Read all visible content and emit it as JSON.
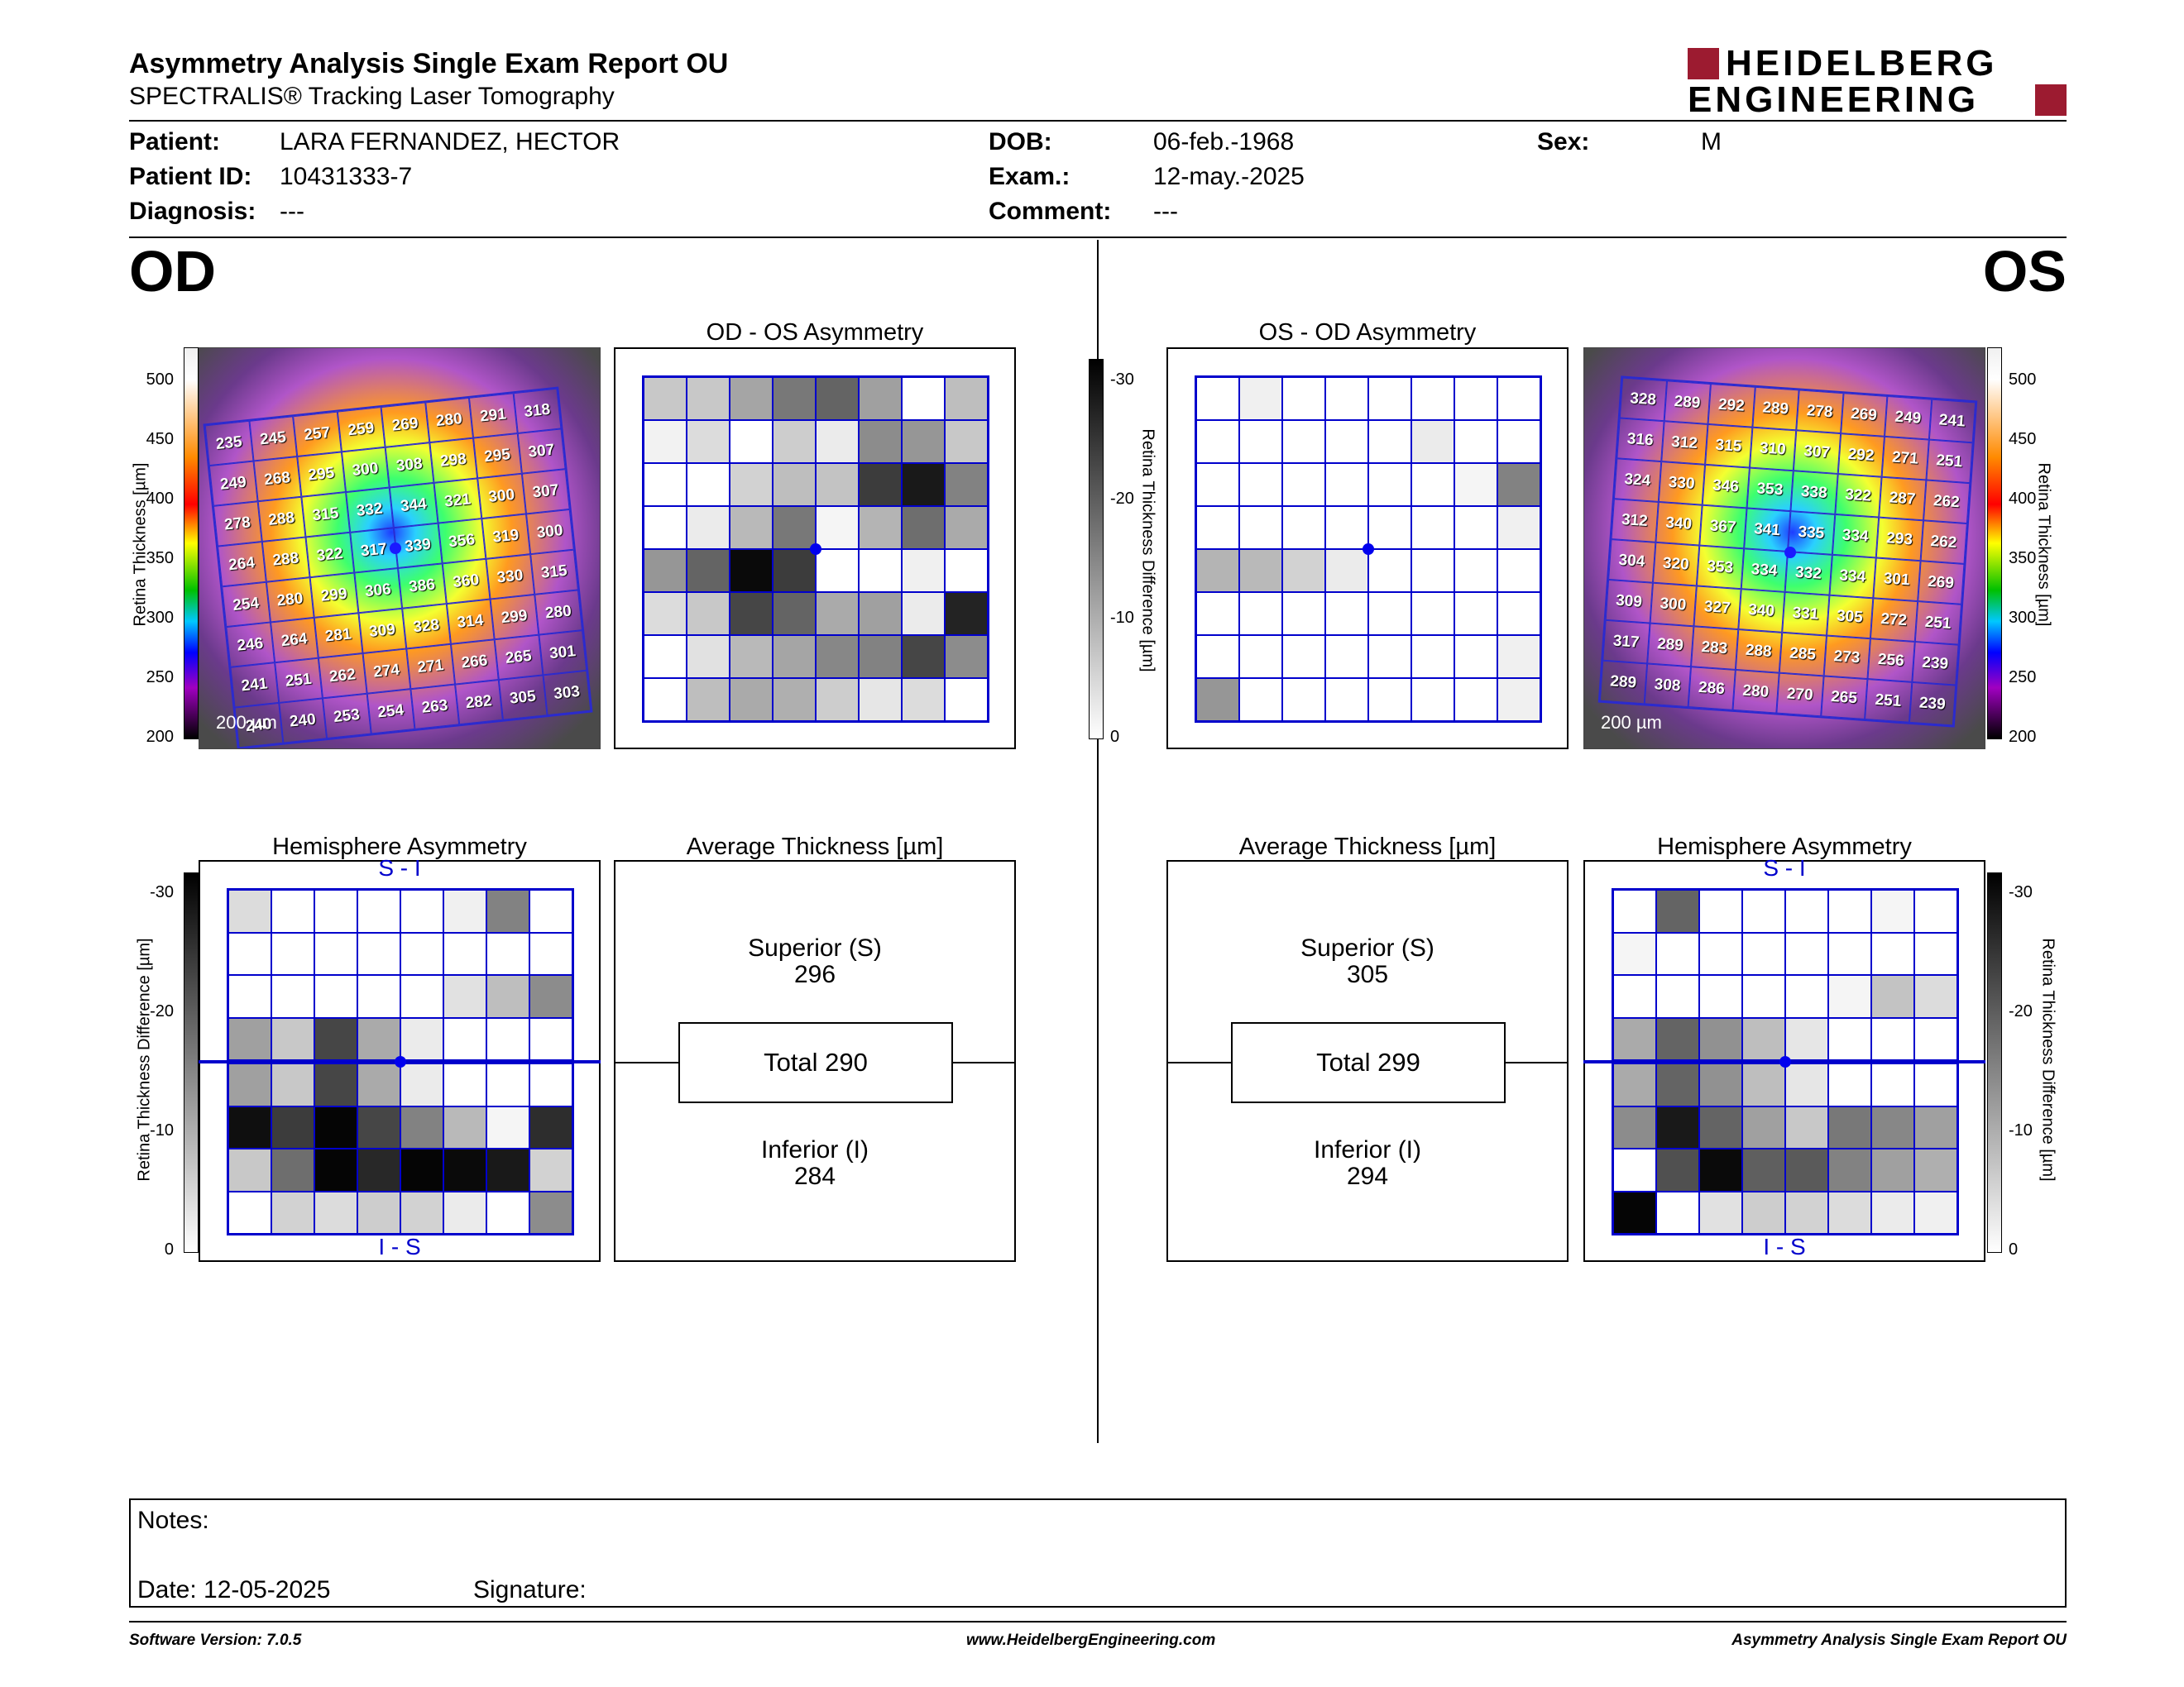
{
  "header": {
    "title": "Asymmetry Analysis Single Exam Report OU",
    "subtitle": "SPECTRALIS® Tracking Laser Tomography",
    "logo_line1": "HEIDELBERG",
    "logo_line2": "ENGINEERING",
    "logo_color": "#9c1b30"
  },
  "patient": {
    "patient_label": "Patient:",
    "patient_name": "LARA FERNANDEZ, HECTOR",
    "id_label": "Patient ID:",
    "patient_id": "10431333-7",
    "diag_label": "Diagnosis:",
    "diagnosis": "---",
    "dob_label": "DOB:",
    "dob": "06-feb.-1968",
    "exam_label": "Exam.:",
    "exam_date": "12-may.-2025",
    "comment_label": "Comment:",
    "comment": "---",
    "sex_label": "Sex:",
    "sex": "M"
  },
  "od": {
    "label": "OD",
    "asym_title": "OD - OS Asymmetry",
    "hemi_title": "Hemisphere Asymmetry",
    "avg_title": "Average Thickness [µm]",
    "superior_label": "Superior (S)",
    "superior": "296",
    "total": "Total 290",
    "inferior_label": "Inferior (I)",
    "inferior": "284",
    "scale_label": "200 µm",
    "si_label": "S - I",
    "is_label": "I - S",
    "thickness_grid": [
      [
        235,
        245,
        257,
        259,
        269,
        280,
        291,
        318
      ],
      [
        249,
        268,
        295,
        300,
        308,
        298,
        295,
        307
      ],
      [
        278,
        288,
        315,
        332,
        344,
        321,
        300,
        307
      ],
      [
        264,
        288,
        322,
        317,
        339,
        356,
        319,
        300
      ],
      [
        254,
        280,
        299,
        306,
        386,
        360,
        330,
        315
      ],
      [
        246,
        264,
        281,
        309,
        328,
        314,
        299,
        280
      ],
      [
        241,
        251,
        262,
        274,
        271,
        266,
        265,
        301
      ],
      [
        240,
        240,
        253,
        254,
        263,
        282,
        305,
        303
      ]
    ],
    "asym_gray": [
      [
        200,
        200,
        165,
        120,
        100,
        160,
        255,
        190
      ],
      [
        242,
        220,
        255,
        205,
        235,
        140,
        150,
        200
      ],
      [
        255,
        255,
        210,
        190,
        195,
        60,
        25,
        130
      ],
      [
        255,
        235,
        185,
        120,
        245,
        180,
        110,
        170
      ],
      [
        150,
        100,
        10,
        60,
        255,
        255,
        240,
        255
      ],
      [
        220,
        200,
        70,
        100,
        170,
        160,
        235,
        35
      ],
      [
        255,
        225,
        185,
        165,
        135,
        130,
        70,
        140
      ],
      [
        255,
        190,
        170,
        175,
        205,
        230,
        220,
        255
      ]
    ],
    "hemi_gray": [
      [
        220,
        255,
        255,
        255,
        255,
        240,
        130,
        255
      ],
      [
        255,
        255,
        255,
        255,
        255,
        255,
        255,
        255
      ],
      [
        255,
        255,
        255,
        255,
        255,
        225,
        190,
        140
      ],
      [
        160,
        200,
        70,
        170,
        235,
        255,
        255,
        255
      ],
      [
        15,
        60,
        5,
        70,
        130,
        185,
        245,
        45
      ],
      [
        200,
        110,
        5,
        40,
        5,
        10,
        25,
        210
      ],
      [
        255,
        210,
        220,
        205,
        210,
        235,
        255,
        140
      ]
    ]
  },
  "os": {
    "label": "OS",
    "asym_title": "OS - OD Asymmetry",
    "hemi_title": "Hemisphere Asymmetry",
    "avg_title": "Average Thickness [µm]",
    "superior_label": "Superior (S)",
    "superior": "305",
    "total": "Total 299",
    "inferior_label": "Inferior (I)",
    "inferior": "294",
    "scale_label": "200 µm",
    "si_label": "S - I",
    "is_label": "I - S",
    "thickness_grid": [
      [
        328,
        289,
        292,
        289,
        278,
        269,
        249,
        241
      ],
      [
        316,
        312,
        315,
        310,
        307,
        292,
        271,
        251
      ],
      [
        324,
        330,
        346,
        353,
        338,
        322,
        287,
        262
      ],
      [
        312,
        340,
        367,
        341,
        335,
        334,
        293,
        262
      ],
      [
        304,
        320,
        353,
        334,
        332,
        334,
        301,
        269
      ],
      [
        309,
        300,
        327,
        340,
        331,
        305,
        272,
        251
      ],
      [
        317,
        289,
        283,
        288,
        285,
        273,
        256,
        239
      ],
      [
        289,
        308,
        286,
        280,
        270,
        265,
        251,
        239
      ]
    ],
    "asym_gray": [
      [
        255,
        240,
        255,
        255,
        255,
        255,
        255,
        255
      ],
      [
        255,
        255,
        255,
        255,
        255,
        235,
        255,
        255
      ],
      [
        255,
        255,
        255,
        255,
        255,
        255,
        245,
        130
      ],
      [
        255,
        255,
        255,
        255,
        255,
        255,
        255,
        240
      ],
      [
        180,
        185,
        210,
        235,
        255,
        255,
        255,
        255
      ],
      [
        255,
        255,
        255,
        255,
        255,
        255,
        255,
        255
      ],
      [
        255,
        255,
        255,
        255,
        255,
        255,
        255,
        240
      ],
      [
        150,
        255,
        255,
        255,
        255,
        255,
        255,
        240
      ]
    ],
    "hemi_gray": [
      [
        255,
        100,
        255,
        255,
        255,
        255,
        245,
        255
      ],
      [
        245,
        255,
        255,
        255,
        255,
        255,
        255,
        255
      ],
      [
        255,
        255,
        255,
        255,
        255,
        245,
        195,
        220
      ],
      [
        170,
        100,
        145,
        190,
        230,
        255,
        255,
        255
      ],
      [
        140,
        25,
        100,
        160,
        200,
        120,
        135,
        160
      ],
      [
        255,
        80,
        10,
        95,
        90,
        130,
        160,
        175
      ],
      [
        5,
        255,
        225,
        205,
        210,
        220,
        235,
        240
      ]
    ]
  },
  "colorbar": {
    "thickness_label": "Retina Thickness [µm]",
    "thickness_ticks": [
      "500",
      "450",
      "400",
      "350",
      "300",
      "250",
      "200"
    ],
    "diff_label": "Retina Thickness Difference [µm]",
    "diff_ticks": [
      "-30",
      "-20",
      "-10",
      "0"
    ]
  },
  "notes": {
    "notes_label": "Notes:",
    "date_label": "Date: 12-05-2025",
    "signature_label": "Signature:"
  },
  "footer": {
    "software": "Software Version: 7.0.5",
    "website": "www.HeidelbergEngineering.com",
    "report": "Asymmetry Analysis Single Exam Report OU"
  }
}
